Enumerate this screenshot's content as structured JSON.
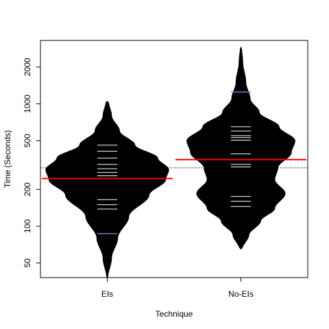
{
  "chart_data": {
    "type": "beanplot",
    "xlabel": "Technique",
    "ylabel": "Time (Seconds)",
    "y_scale": "log",
    "ylim": [
      38,
      3300
    ],
    "yticks": [
      50,
      100,
      200,
      500,
      1000,
      2000
    ],
    "categories": [
      "EIs",
      "No-EIs"
    ],
    "overall_mean": 300,
    "colors": {
      "bean": "#000000",
      "mean_line": "#ff0000",
      "obs_line": "#ffffff",
      "extreme_obs_line": "#7777cc",
      "overall_line": "#000000"
    },
    "beans": [
      {
        "category": "EIs",
        "mean": 245,
        "observations": [
          460,
          410,
          360,
          320,
          295,
          275,
          258,
          245,
          165,
          150,
          138
        ],
        "extreme_observations": [
          87
        ],
        "density": [
          [
            38,
            0.01
          ],
          [
            55,
            0.07
          ],
          [
            80,
            0.17
          ],
          [
            120,
            0.35
          ],
          [
            180,
            0.68
          ],
          [
            240,
            0.95
          ],
          [
            290,
            1.0
          ],
          [
            360,
            0.82
          ],
          [
            460,
            0.45
          ],
          [
            600,
            0.2
          ],
          [
            800,
            0.07
          ],
          [
            1050,
            0.02
          ]
        ]
      },
      {
        "category": "No-EIs",
        "mean": 350,
        "observations": [
          650,
          600,
          550,
          530,
          505,
          390,
          320,
          305,
          175,
          160,
          145
        ],
        "extreme_observations": [
          1250
        ],
        "density": [
          [
            65,
            0.02
          ],
          [
            85,
            0.13
          ],
          [
            110,
            0.32
          ],
          [
            140,
            0.55
          ],
          [
            185,
            0.72
          ],
          [
            240,
            0.55
          ],
          [
            300,
            0.6
          ],
          [
            400,
            0.82
          ],
          [
            500,
            0.88
          ],
          [
            650,
            0.62
          ],
          [
            850,
            0.3
          ],
          [
            1100,
            0.15
          ],
          [
            1500,
            0.08
          ],
          [
            2200,
            0.03
          ],
          [
            2900,
            0.01
          ]
        ]
      }
    ]
  }
}
